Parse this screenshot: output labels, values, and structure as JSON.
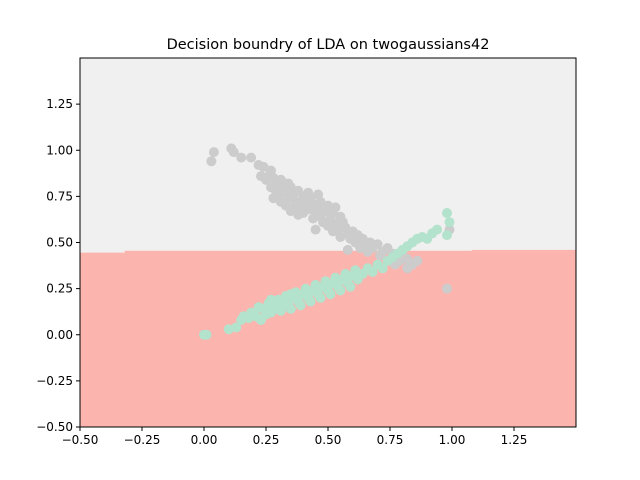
{
  "chart_data": {
    "type": "scatter",
    "title": "Decision boundry of LDA on twogaussians42",
    "xlabel": "",
    "ylabel": "",
    "xlim": [
      -0.5,
      1.5
    ],
    "ylim": [
      -0.5,
      1.5
    ],
    "xticks": [
      -0.5,
      -0.25,
      0.0,
      0.25,
      0.5,
      0.75,
      1.0,
      1.25
    ],
    "yticks": [
      -0.5,
      -0.25,
      0.0,
      0.25,
      0.5,
      0.75,
      1.0,
      1.25
    ],
    "xtick_labels": [
      "−0.50",
      "−0.25",
      "0.00",
      "0.25",
      "0.50",
      "0.75",
      "1.00",
      "1.25"
    ],
    "ytick_labels": [
      "−0.50",
      "−0.25",
      "0.00",
      "0.25",
      "0.50",
      "0.75",
      "1.00",
      "1.25"
    ],
    "grid": false,
    "regions": [
      {
        "color": "#f0f0f0",
        "boundary": [
          [
            -0.5,
            1.5
          ],
          [
            1.5,
            1.5
          ],
          [
            1.5,
            0.46
          ],
          [
            1.08,
            0.46
          ],
          [
            1.08,
            0.455
          ],
          [
            -0.32,
            0.455
          ],
          [
            -0.32,
            0.445
          ],
          [
            -0.5,
            0.445
          ]
        ]
      },
      {
        "color": "#fbb4ae",
        "boundary": [
          [
            -0.5,
            0.445
          ],
          [
            -0.32,
            0.445
          ],
          [
            -0.32,
            0.455
          ],
          [
            1.08,
            0.455
          ],
          [
            1.08,
            0.46
          ],
          [
            1.5,
            0.46
          ],
          [
            1.5,
            -0.5
          ],
          [
            -0.5,
            -0.5
          ]
        ]
      }
    ],
    "series": [
      {
        "color": "#cccccc",
        "points": [
          [
            0.03,
            0.94
          ],
          [
            0.04,
            0.99
          ],
          [
            0.11,
            1.01
          ],
          [
            0.12,
            0.99
          ],
          [
            0.15,
            0.96
          ],
          [
            0.19,
            0.96
          ],
          [
            0.22,
            0.92
          ],
          [
            0.24,
            0.91
          ],
          [
            0.23,
            0.86
          ],
          [
            0.26,
            0.86
          ],
          [
            0.27,
            0.89
          ],
          [
            0.28,
            0.85
          ],
          [
            0.3,
            0.83
          ],
          [
            0.25,
            0.84
          ],
          [
            0.27,
            0.8
          ],
          [
            0.29,
            0.78
          ],
          [
            0.31,
            0.84
          ],
          [
            0.32,
            0.8
          ],
          [
            0.33,
            0.77
          ],
          [
            0.35,
            0.8
          ],
          [
            0.34,
            0.82
          ],
          [
            0.3,
            0.76
          ],
          [
            0.28,
            0.74
          ],
          [
            0.31,
            0.72
          ],
          [
            0.34,
            0.74
          ],
          [
            0.36,
            0.76
          ],
          [
            0.37,
            0.72
          ],
          [
            0.33,
            0.7
          ],
          [
            0.36,
            0.69
          ],
          [
            0.38,
            0.78
          ],
          [
            0.4,
            0.75
          ],
          [
            0.39,
            0.7
          ],
          [
            0.41,
            0.72
          ],
          [
            0.42,
            0.68
          ],
          [
            0.4,
            0.66
          ],
          [
            0.43,
            0.74
          ],
          [
            0.44,
            0.71
          ],
          [
            0.45,
            0.66
          ],
          [
            0.46,
            0.69
          ],
          [
            0.47,
            0.72
          ],
          [
            0.44,
            0.63
          ],
          [
            0.47,
            0.64
          ],
          [
            0.49,
            0.67
          ],
          [
            0.5,
            0.7
          ],
          [
            0.48,
            0.61
          ],
          [
            0.51,
            0.63
          ],
          [
            0.52,
            0.66
          ],
          [
            0.53,
            0.69
          ],
          [
            0.5,
            0.59
          ],
          [
            0.53,
            0.6
          ],
          [
            0.55,
            0.64
          ],
          [
            0.56,
            0.61
          ],
          [
            0.54,
            0.57
          ],
          [
            0.57,
            0.58
          ],
          [
            0.58,
            0.55
          ],
          [
            0.55,
            0.53
          ],
          [
            0.6,
            0.56
          ],
          [
            0.59,
            0.52
          ],
          [
            0.61,
            0.5
          ],
          [
            0.62,
            0.54
          ],
          [
            0.64,
            0.52
          ],
          [
            0.65,
            0.49
          ],
          [
            0.63,
            0.47
          ],
          [
            0.67,
            0.5
          ],
          [
            0.68,
            0.47
          ],
          [
            0.7,
            0.49
          ],
          [
            0.66,
            0.45
          ],
          [
            0.72,
            0.45
          ],
          [
            0.74,
            0.47
          ],
          [
            0.71,
            0.43
          ],
          [
            0.76,
            0.44
          ],
          [
            0.78,
            0.42
          ],
          [
            0.8,
            0.45
          ],
          [
            0.79,
            0.4
          ],
          [
            0.82,
            0.41
          ],
          [
            0.84,
            0.38
          ],
          [
            0.86,
            0.4
          ],
          [
            0.82,
            0.36
          ],
          [
            0.77,
            0.38
          ],
          [
            0.99,
            0.57
          ],
          [
            0.98,
            0.25
          ],
          [
            0.58,
            0.46
          ],
          [
            0.45,
            0.57
          ],
          [
            0.52,
            0.56
          ],
          [
            0.38,
            0.65
          ],
          [
            0.35,
            0.67
          ],
          [
            0.42,
            0.77
          ],
          [
            0.46,
            0.76
          ]
        ]
      },
      {
        "color": "#b3e2cd",
        "points": [
          [
            0.0,
            0.0
          ],
          [
            0.01,
            0.0
          ],
          [
            0.1,
            0.03
          ],
          [
            0.13,
            0.04
          ],
          [
            0.15,
            0.08
          ],
          [
            0.16,
            0.1
          ],
          [
            0.18,
            0.09
          ],
          [
            0.19,
            0.12
          ],
          [
            0.21,
            0.1
          ],
          [
            0.22,
            0.15
          ],
          [
            0.24,
            0.14
          ],
          [
            0.25,
            0.11
          ],
          [
            0.26,
            0.17
          ],
          [
            0.27,
            0.12
          ],
          [
            0.28,
            0.16
          ],
          [
            0.3,
            0.19
          ],
          [
            0.29,
            0.14
          ],
          [
            0.31,
            0.13
          ],
          [
            0.32,
            0.18
          ],
          [
            0.33,
            0.21
          ],
          [
            0.34,
            0.16
          ],
          [
            0.35,
            0.14
          ],
          [
            0.36,
            0.2
          ],
          [
            0.37,
            0.23
          ],
          [
            0.38,
            0.18
          ],
          [
            0.39,
            0.16
          ],
          [
            0.4,
            0.22
          ],
          [
            0.41,
            0.25
          ],
          [
            0.42,
            0.2
          ],
          [
            0.43,
            0.18
          ],
          [
            0.44,
            0.24
          ],
          [
            0.45,
            0.27
          ],
          [
            0.46,
            0.22
          ],
          [
            0.47,
            0.2
          ],
          [
            0.48,
            0.26
          ],
          [
            0.49,
            0.29
          ],
          [
            0.5,
            0.24
          ],
          [
            0.51,
            0.22
          ],
          [
            0.52,
            0.28
          ],
          [
            0.53,
            0.31
          ],
          [
            0.54,
            0.26
          ],
          [
            0.55,
            0.24
          ],
          [
            0.56,
            0.3
          ],
          [
            0.57,
            0.33
          ],
          [
            0.58,
            0.28
          ],
          [
            0.59,
            0.26
          ],
          [
            0.6,
            0.32
          ],
          [
            0.61,
            0.35
          ],
          [
            0.62,
            0.3
          ],
          [
            0.64,
            0.33
          ],
          [
            0.66,
            0.36
          ],
          [
            0.68,
            0.34
          ],
          [
            0.7,
            0.38
          ],
          [
            0.72,
            0.36
          ],
          [
            0.74,
            0.4
          ],
          [
            0.76,
            0.42
          ],
          [
            0.78,
            0.44
          ],
          [
            0.8,
            0.46
          ],
          [
            0.82,
            0.48
          ],
          [
            0.84,
            0.5
          ],
          [
            0.86,
            0.52
          ],
          [
            0.88,
            0.53
          ],
          [
            0.9,
            0.52
          ],
          [
            0.92,
            0.55
          ],
          [
            0.94,
            0.57
          ],
          [
            0.98,
            0.66
          ],
          [
            0.99,
            0.61
          ],
          [
            0.98,
            0.54
          ],
          [
            0.3,
            0.17
          ],
          [
            0.35,
            0.22
          ],
          [
            0.27,
            0.19
          ],
          [
            0.23,
            0.08
          ]
        ]
      }
    ]
  }
}
